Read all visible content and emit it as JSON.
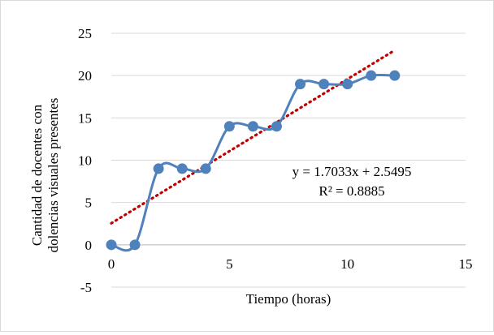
{
  "chart_data": {
    "type": "scatter",
    "title": "",
    "xlabel": "Tiempo (horas)",
    "ylabel": [
      "Cantidad de docentes con",
      "dolencias visuales presentes"
    ],
    "xlim": [
      0,
      15
    ],
    "ylim": [
      -5,
      25
    ],
    "x_ticks": [
      0,
      5,
      10,
      15
    ],
    "y_ticks": [
      -5,
      0,
      5,
      10,
      15,
      20,
      25
    ],
    "grid": "horizontal",
    "legend": "none",
    "series": [
      {
        "x": [
          0,
          1,
          2,
          3,
          4,
          5,
          6,
          7,
          8,
          9,
          10,
          11,
          12
        ],
        "y": [
          0,
          0,
          9,
          9,
          9,
          14,
          14,
          14,
          19,
          19,
          19,
          20,
          20
        ],
        "color": "#4f81bd",
        "line": "smoothed",
        "markers": "circle"
      }
    ],
    "trendline": {
      "type": "linear",
      "slope": 1.7033,
      "intercept": 2.5495,
      "x_range": [
        0,
        12
      ],
      "color": "#c00000",
      "style": "dotted"
    },
    "annotations": {
      "equation": "y = 1.7033x + 2.5495",
      "r2": "R² = 0.8885"
    }
  }
}
